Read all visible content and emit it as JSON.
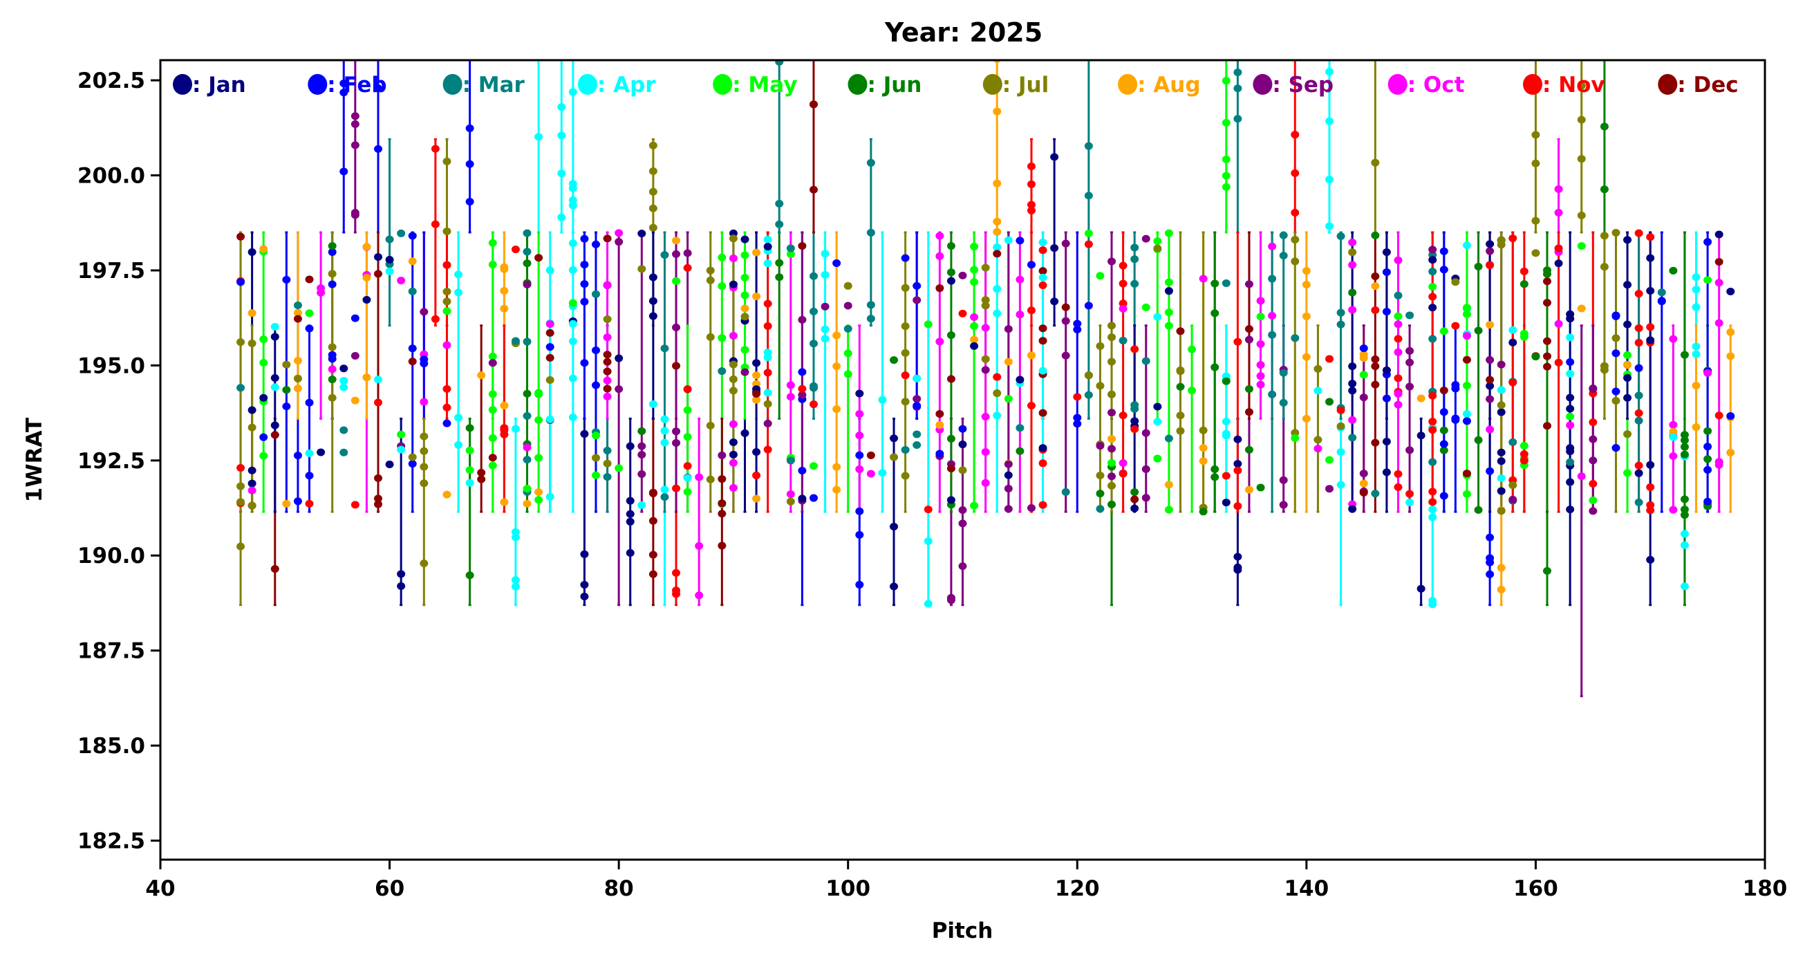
{
  "chart_data": {
    "type": "errorbar-scatter",
    "title": "Year: 2025",
    "xlabel": "Pitch",
    "ylabel": "1WRAT",
    "xlim": [
      40,
      180
    ],
    "ylim": [
      182.0,
      203.03
    ],
    "xticks": [
      40,
      60,
      80,
      100,
      120,
      140,
      160,
      180
    ],
    "xtick_labels": [
      "40",
      "60",
      "80",
      "100",
      "120",
      "140",
      "160",
      "180"
    ],
    "yticks": [
      182.5,
      185.0,
      187.5,
      190.0,
      192.5,
      195.0,
      197.5,
      200.0,
      202.5
    ],
    "ytick_labels": [
      "182.5",
      "185.0",
      "187.5",
      "190.0",
      "192.5",
      "195.0",
      "197.5",
      "200.0",
      "202.5"
    ],
    "grid": false,
    "legend_placement": "top (inside axes, single row)",
    "legend": [
      {
        "label": ": Jan",
        "color": "#000080"
      },
      {
        "label": ": Feb",
        "color": "#0000ff"
      },
      {
        "label": ": Mar",
        "color": "#008080"
      },
      {
        "label": ": Apr",
        "color": "#00ffff"
      },
      {
        "label": ": May",
        "color": "#00ff00"
      },
      {
        "label": ": Jun",
        "color": "#008000"
      },
      {
        "label": ": Jul",
        "color": "#808000"
      },
      {
        "label": ": Aug",
        "color": "#ffa500"
      },
      {
        "label": ": Sep",
        "color": "#800080"
      },
      {
        "label": ": Oct",
        "color": "#ff00ff"
      },
      {
        "label": ": Nov",
        "color": "#ff0000"
      },
      {
        "label": ": Dec",
        "color": "#8b0000"
      }
    ],
    "x_range_of_data": [
      47,
      177
    ],
    "errorbar_levels": [
      188.7,
      191.15,
      193.6,
      196.05,
      198.5,
      200.95,
      203.4
    ],
    "notes_lowest_point": {
      "x": 164,
      "ymin": 186.3
    },
    "seed": 2025
  }
}
